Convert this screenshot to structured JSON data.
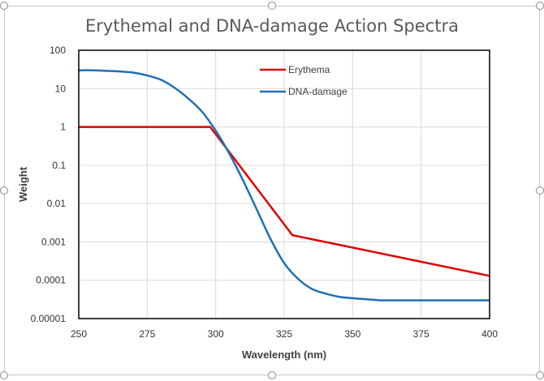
{
  "chart_data": {
    "type": "line",
    "title": "Erythemal and DNA-damage Action Spectra",
    "xlabel": "Wavelength (nm)",
    "ylabel": "Weight",
    "xlim": [
      250,
      400
    ],
    "ylim": [
      1e-05,
      100
    ],
    "y_scale": "log",
    "x_ticks": [
      250,
      275,
      300,
      325,
      350,
      375,
      400
    ],
    "x_tick_labels": [
      "250",
      "275",
      "300",
      "325",
      "350",
      "375",
      "400"
    ],
    "y_ticks": [
      1e-05,
      0.0001,
      0.001,
      0.01,
      0.1,
      1,
      10,
      100
    ],
    "y_tick_labels": [
      "0.00001",
      "0.0001",
      "0.001",
      "0.01",
      "0.1",
      "1",
      "10",
      "100"
    ],
    "grid": true,
    "legend_position": "top-center",
    "series": [
      {
        "name": "Erythema",
        "color": "#e00000",
        "x": [
          250,
          298,
          328,
          400
        ],
        "y": [
          1,
          1,
          0.0015,
          0.00013
        ]
      },
      {
        "name": "DNA-damage",
        "color": "#1f6fb5",
        "x": [
          250,
          255,
          260,
          265,
          270,
          275,
          280,
          285,
          290,
          295,
          300,
          305,
          310,
          315,
          320,
          325,
          330,
          335,
          340,
          345,
          350,
          355,
          360,
          365,
          370,
          375,
          380,
          385,
          390,
          395,
          400
        ],
        "y": [
          30,
          30,
          29,
          28,
          26,
          22,
          17,
          10.5,
          5.5,
          2.5,
          0.8,
          0.2,
          0.04,
          0.007,
          0.0012,
          0.00028,
          0.00011,
          6e-05,
          4.5e-05,
          3.7e-05,
          3.4e-05,
          3.2e-05,
          3e-05,
          3e-05,
          3e-05,
          3e-05,
          3e-05,
          3e-05,
          3e-05,
          3e-05,
          3e-05
        ]
      }
    ]
  }
}
